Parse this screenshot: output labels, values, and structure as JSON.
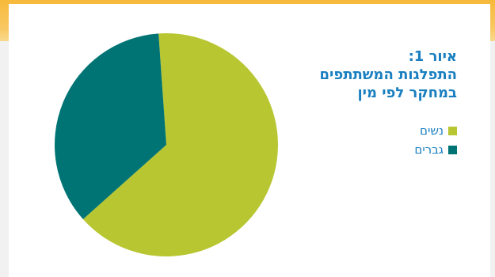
{
  "chart_data": {
    "type": "pie",
    "title": "איור 1:\nהתפלגות המשתתפים\nבמחקר לפי מין",
    "series": [
      {
        "name": "נשים",
        "value": 64.5,
        "color": "#b8c632"
      },
      {
        "name": "גברים",
        "value": 35.5,
        "color": "#007474"
      }
    ],
    "legend_position": "right"
  }
}
